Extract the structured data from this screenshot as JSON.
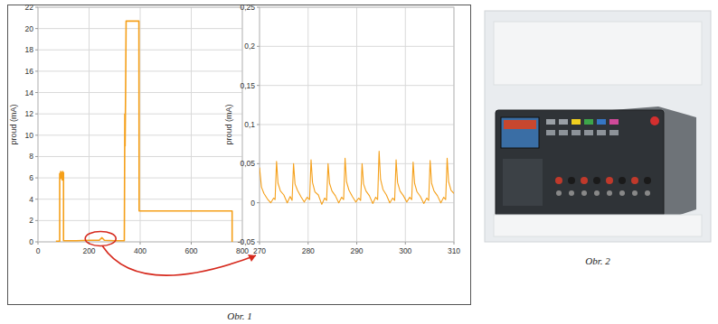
{
  "chart_data": [
    {
      "type": "line",
      "y_label": "proud (mA)",
      "x": [
        70,
        85,
        85,
        87,
        89,
        91,
        93,
        95,
        97,
        99,
        100,
        100,
        150,
        200,
        240,
        250,
        260,
        300,
        338,
        340,
        341,
        343,
        345,
        395,
        396,
        760,
        760
      ],
      "series": [
        {
          "color": "#f5a01a",
          "values": [
            0.05,
            0.05,
            6.4,
            5.9,
            6.6,
            6.0,
            6.5,
            5.8,
            6.6,
            6.2,
            6.5,
            0.1,
            0.1,
            0.15,
            0.15,
            0.4,
            0.15,
            0.1,
            0.1,
            12,
            9,
            14,
            20.7,
            20.7,
            2.9,
            2.9,
            0
          ]
        }
      ],
      "xlim": [
        0,
        800
      ],
      "xticks": [
        0,
        200,
        400,
        600,
        800
      ],
      "ylim": [
        0,
        22
      ],
      "yticks": [
        0,
        2,
        4,
        6,
        8,
        10,
        12,
        14,
        16,
        18,
        20,
        22
      ],
      "grid": true
    },
    {
      "type": "line",
      "y_label": "proud (mA)",
      "x": [
        270,
        270.4,
        270.9,
        271.6,
        272.3,
        272.9,
        273.2,
        273.5,
        273.8,
        274.3,
        275.0,
        275.7,
        276.3,
        276.7,
        277.0,
        277.3,
        277.8,
        278.5,
        279.2,
        279.8,
        280.3,
        280.6,
        280.9,
        281.4,
        282.1,
        282.8,
        283.4,
        283.8,
        284.1,
        284.4,
        284.9,
        285.6,
        286.3,
        286.9,
        287.3,
        287.6,
        287.9,
        288.4,
        289.1,
        289.8,
        290.4,
        290.8,
        291.1,
        291.4,
        291.9,
        292.6,
        293.3,
        293.9,
        294.3,
        294.6,
        294.9,
        295.4,
        296.1,
        296.8,
        297.4,
        297.8,
        298.1,
        298.4,
        298.9,
        299.6,
        300.3,
        300.9,
        301.3,
        301.6,
        301.9,
        302.4,
        303.1,
        303.8,
        304.4,
        304.8,
        305.1,
        305.4,
        305.9,
        306.6,
        307.3,
        307.9,
        308.3,
        308.6,
        308.9,
        309.4,
        310.0
      ],
      "series": [
        {
          "color": "#f5a01a",
          "values": [
            0.045,
            0.02,
            0.012,
            0.005,
            0.0,
            0.006,
            0.004,
            0.053,
            0.025,
            0.015,
            0.01,
            0.0,
            0.008,
            0.003,
            0.05,
            0.024,
            0.016,
            0.008,
            0.001,
            0.007,
            0.004,
            0.055,
            0.026,
            0.014,
            0.01,
            -0.002,
            0.006,
            0.003,
            0.05,
            0.025,
            0.015,
            0.009,
            0.0,
            0.007,
            0.004,
            0.057,
            0.027,
            0.016,
            0.008,
            0.001,
            0.006,
            0.003,
            0.05,
            0.024,
            0.015,
            0.009,
            -0.001,
            0.007,
            0.004,
            0.066,
            0.03,
            0.017,
            0.01,
            0.0,
            0.006,
            0.003,
            0.055,
            0.026,
            0.015,
            0.009,
            0.001,
            0.007,
            0.004,
            0.052,
            0.025,
            0.014,
            0.008,
            -0.001,
            0.006,
            0.003,
            0.054,
            0.025,
            0.015,
            0.009,
            0.0,
            0.007,
            0.004,
            0.057,
            0.027,
            0.016,
            0.012
          ]
        }
      ],
      "xlim": [
        270,
        310
      ],
      "xticks": [
        270,
        280,
        290,
        300,
        310
      ],
      "ylim": [
        -0.05,
        0.25
      ],
      "yticks": [
        {
          "value": -0.05,
          "label": "-0,05"
        },
        0,
        {
          "value": 0.05,
          "label": "0,05"
        },
        {
          "value": 0.1,
          "label": "0,1"
        },
        {
          "value": 0.15,
          "label": "0,15"
        },
        {
          "value": 0.2,
          "label": "0,2"
        },
        {
          "value": 0.25,
          "label": "0,25"
        }
      ],
      "grid": true
    }
  ],
  "figures": [
    {
      "caption": "Obr. 1"
    },
    {
      "caption": "Obr. 2"
    }
  ]
}
